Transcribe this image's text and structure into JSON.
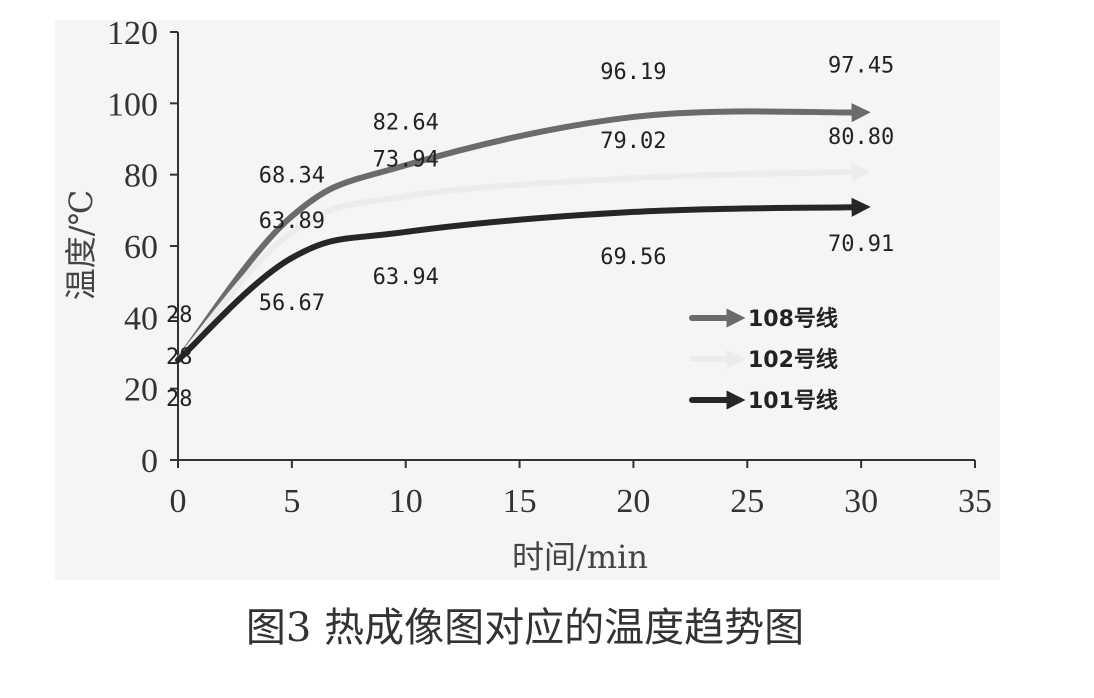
{
  "chart_data": {
    "type": "line",
    "xlabel": "时间/min",
    "ylabel": "温度/℃",
    "xlim": [
      0,
      35
    ],
    "ylim": [
      0,
      120
    ],
    "xticks": [
      0,
      5,
      10,
      15,
      20,
      25,
      30,
      35
    ],
    "yticks": [
      0,
      20,
      40,
      60,
      80,
      100,
      120
    ],
    "grid": false,
    "legend_position": "right",
    "x": [
      0,
      5,
      10,
      20,
      30
    ],
    "series": [
      {
        "name": "108号线",
        "color": "#6b6b6b",
        "values": [
          28,
          68.34,
          82.64,
          96.19,
          97.45
        ],
        "labels": [
          "28",
          "68.34",
          "82.64",
          "96.19",
          "97.45"
        ]
      },
      {
        "name": "102号线",
        "color": "#ececec",
        "values": [
          28,
          63.89,
          73.94,
          79.02,
          80.8
        ],
        "labels": [
          "28",
          "63.89",
          "73.94",
          "79.02",
          "80.80"
        ]
      },
      {
        "name": "101号线",
        "color": "#262626",
        "values": [
          28,
          56.67,
          63.94,
          69.56,
          70.91
        ],
        "labels": [
          "28",
          "56.67",
          "63.94",
          "69.56",
          "70.91"
        ]
      }
    ]
  },
  "caption": "图3  热成像图对应的温度趋势图"
}
